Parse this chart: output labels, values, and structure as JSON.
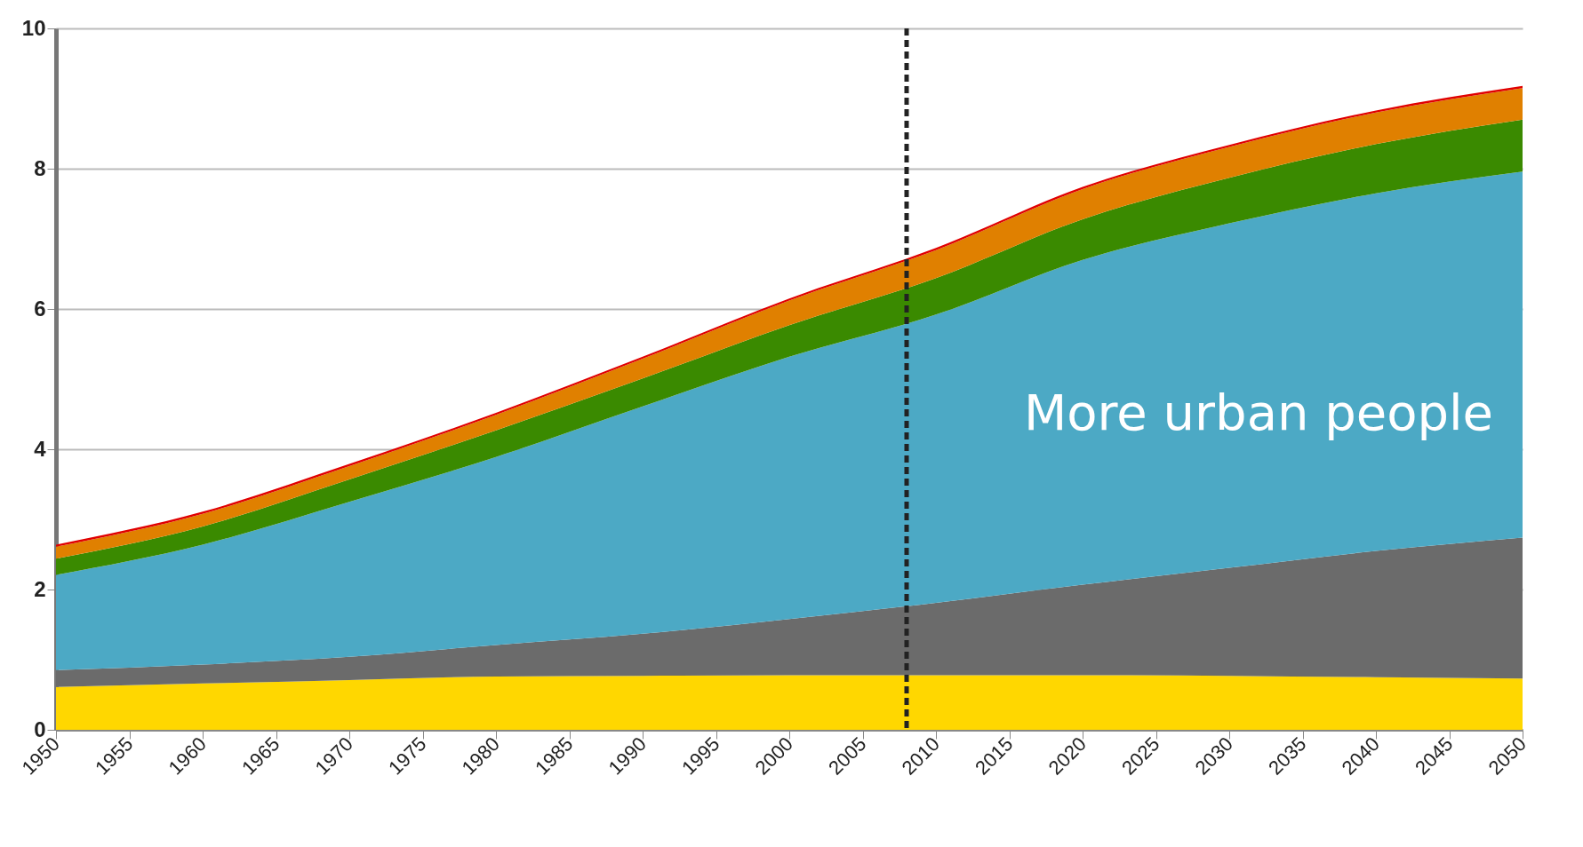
{
  "chart_data": {
    "type": "area",
    "stacked": true,
    "x": [
      1950,
      1960,
      1970,
      1980,
      1990,
      2000,
      2010,
      2020,
      2030,
      2040,
      2050
    ],
    "series": [
      {
        "color": "#ffd700",
        "values": [
          0.61,
          0.66,
          0.71,
          0.76,
          0.77,
          0.78,
          0.78,
          0.78,
          0.77,
          0.75,
          0.73
        ]
      },
      {
        "color": "#6b6b6b",
        "values": [
          0.24,
          0.27,
          0.33,
          0.45,
          0.6,
          0.8,
          1.03,
          1.29,
          1.54,
          1.8,
          2.01
        ]
      },
      {
        "color": "#4ca9c5",
        "values": [
          1.36,
          1.71,
          2.21,
          2.68,
          3.24,
          3.74,
          4.11,
          4.63,
          4.91,
          5.1,
          5.22
        ]
      },
      {
        "color": "#3a8a00",
        "values": [
          0.23,
          0.26,
          0.32,
          0.38,
          0.4,
          0.45,
          0.52,
          0.58,
          0.65,
          0.7,
          0.74
        ]
      },
      {
        "color": "#e08000",
        "values": [
          0.17,
          0.18,
          0.19,
          0.22,
          0.28,
          0.35,
          0.4,
          0.43,
          0.44,
          0.45,
          0.45
        ]
      },
      {
        "color": "#e00000",
        "values": [
          0.03,
          0.03,
          0.03,
          0.03,
          0.03,
          0.03,
          0.03,
          0.03,
          0.03,
          0.03,
          0.03
        ]
      }
    ],
    "xlim": [
      1950,
      2050
    ],
    "xticks": [
      1950,
      1955,
      1960,
      1965,
      1970,
      1975,
      1980,
      1985,
      1990,
      1995,
      2000,
      2005,
      2010,
      2015,
      2020,
      2025,
      2030,
      2035,
      2040,
      2045,
      2050
    ],
    "ylim": [
      0,
      10
    ],
    "yticks": [
      0,
      2,
      4,
      6,
      8,
      10
    ],
    "grid": "y",
    "legend": false,
    "ref_lines": [
      {
        "axis": "x",
        "value": 2008,
        "color": "#222222",
        "line_style": "dashed"
      }
    ],
    "annotations": [
      "More urban people"
    ]
  }
}
